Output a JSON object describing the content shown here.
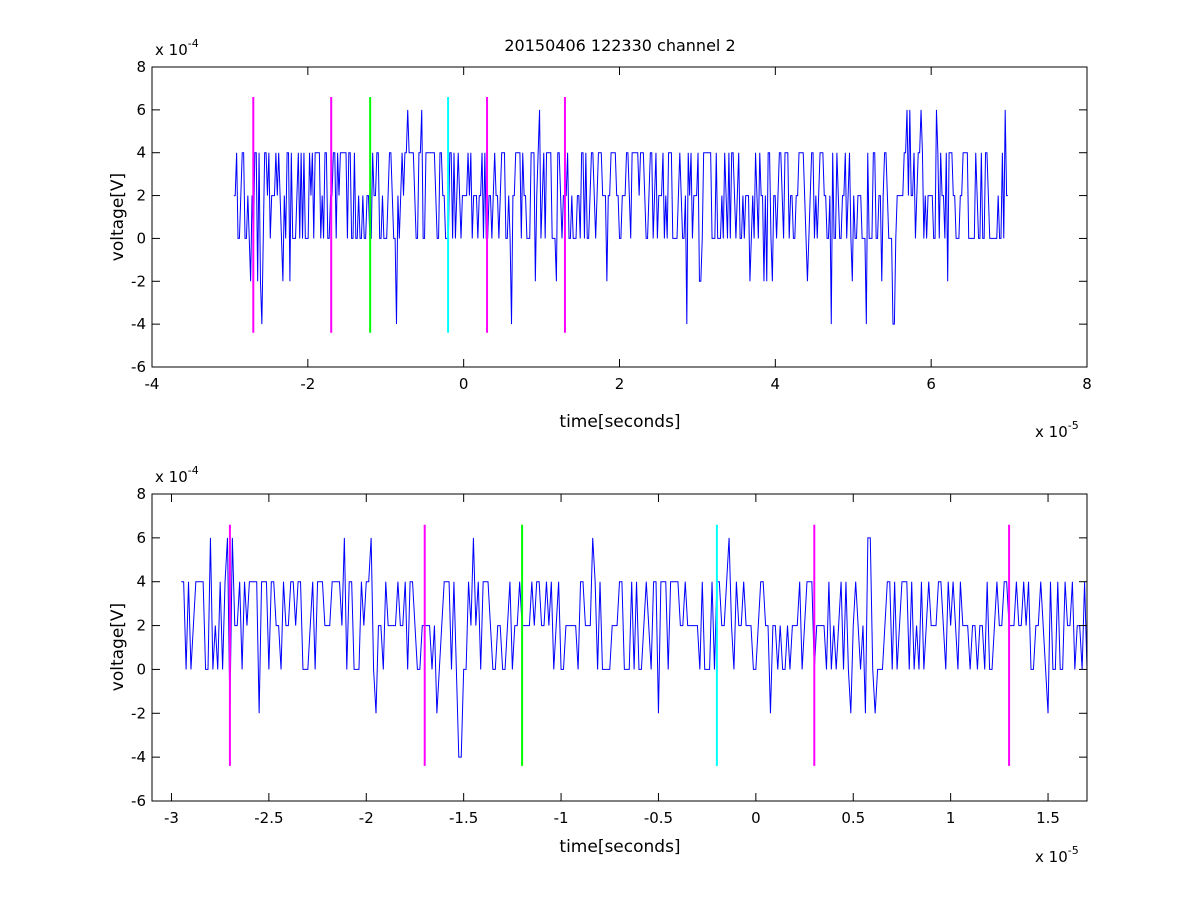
{
  "figure": {
    "title": "20150406 122330 channel 2",
    "signal_color": "#0000ff",
    "background": "#ffffff"
  },
  "chart_data": [
    {
      "type": "line",
      "title": "20150406 122330 channel 2",
      "xlabel": "time[seconds]",
      "ylabel": "voltage[V]",
      "x_exponent_label": "x 10",
      "x_exponent": "-5",
      "y_exponent_label": "x 10",
      "y_exponent": "-4",
      "xlim": [
        -4,
        8
      ],
      "ylim": [
        -6,
        8
      ],
      "x_ticks": [
        -4,
        -2,
        0,
        2,
        4,
        6,
        8
      ],
      "y_ticks": [
        -6,
        -4,
        -2,
        0,
        2,
        4,
        6,
        8
      ],
      "x_tick_labels": [
        "-4",
        "-2",
        "0",
        "2",
        "4",
        "6",
        "8"
      ],
      "y_tick_labels": [
        "-6",
        "-4",
        "-2",
        "0",
        "2",
        "4",
        "6",
        "8"
      ],
      "grid": false,
      "signal": {
        "x_start": -2.95,
        "x_end": 7.0,
        "baseline": 2,
        "levels": [
          -4,
          -2,
          0,
          2,
          4,
          6
        ],
        "color": "#0000ff"
      },
      "markers": [
        {
          "x": -2.7,
          "ymin": -4.4,
          "ymax": 6.6,
          "color": "#ff00ff"
        },
        {
          "x": -1.7,
          "ymin": -4.4,
          "ymax": 6.6,
          "color": "#ff00ff"
        },
        {
          "x": -1.2,
          "ymin": -4.4,
          "ymax": 6.6,
          "color": "#00ff00"
        },
        {
          "x": -0.2,
          "ymin": -4.4,
          "ymax": 6.6,
          "color": "#00ffff"
        },
        {
          "x": 0.3,
          "ymin": -4.4,
          "ymax": 6.6,
          "color": "#ff00ff"
        },
        {
          "x": 1.3,
          "ymin": -4.4,
          "ymax": 6.6,
          "color": "#ff00ff"
        }
      ]
    },
    {
      "type": "line",
      "title": "",
      "xlabel": "time[seconds]",
      "ylabel": "voltage[V]",
      "x_exponent_label": "x 10",
      "x_exponent": "-5",
      "y_exponent_label": "x 10",
      "y_exponent": "-4",
      "xlim": [
        -3.1,
        1.7
      ],
      "ylim": [
        -6,
        8
      ],
      "x_ticks": [
        -3,
        -2.5,
        -2,
        -1.5,
        -1,
        -0.5,
        0,
        0.5,
        1,
        1.5
      ],
      "y_ticks": [
        -6,
        -4,
        -2,
        0,
        2,
        4,
        6,
        8
      ],
      "x_tick_labels": [
        "-3",
        "-2.5",
        "-2",
        "-1.5",
        "-1",
        "-0.5",
        "0",
        "0.5",
        "1",
        "1.5"
      ],
      "y_tick_labels": [
        "-6",
        "-4",
        "-2",
        "0",
        "2",
        "4",
        "6",
        "8"
      ],
      "grid": false,
      "signal": {
        "x_start": -2.95,
        "x_end": 1.7,
        "baseline": 2,
        "levels": [
          -4,
          -2,
          0,
          2,
          4,
          6
        ],
        "color": "#0000ff"
      },
      "markers": [
        {
          "x": -2.7,
          "ymin": -4.4,
          "ymax": 6.6,
          "color": "#ff00ff"
        },
        {
          "x": -1.7,
          "ymin": -4.4,
          "ymax": 6.6,
          "color": "#ff00ff"
        },
        {
          "x": -1.2,
          "ymin": -4.4,
          "ymax": 6.6,
          "color": "#00ff00"
        },
        {
          "x": -0.2,
          "ymin": -4.4,
          "ymax": 6.6,
          "color": "#00ffff"
        },
        {
          "x": 0.3,
          "ymin": -4.4,
          "ymax": 6.6,
          "color": "#ff00ff"
        },
        {
          "x": 1.3,
          "ymin": -4.4,
          "ymax": 6.6,
          "color": "#ff00ff"
        }
      ]
    }
  ]
}
